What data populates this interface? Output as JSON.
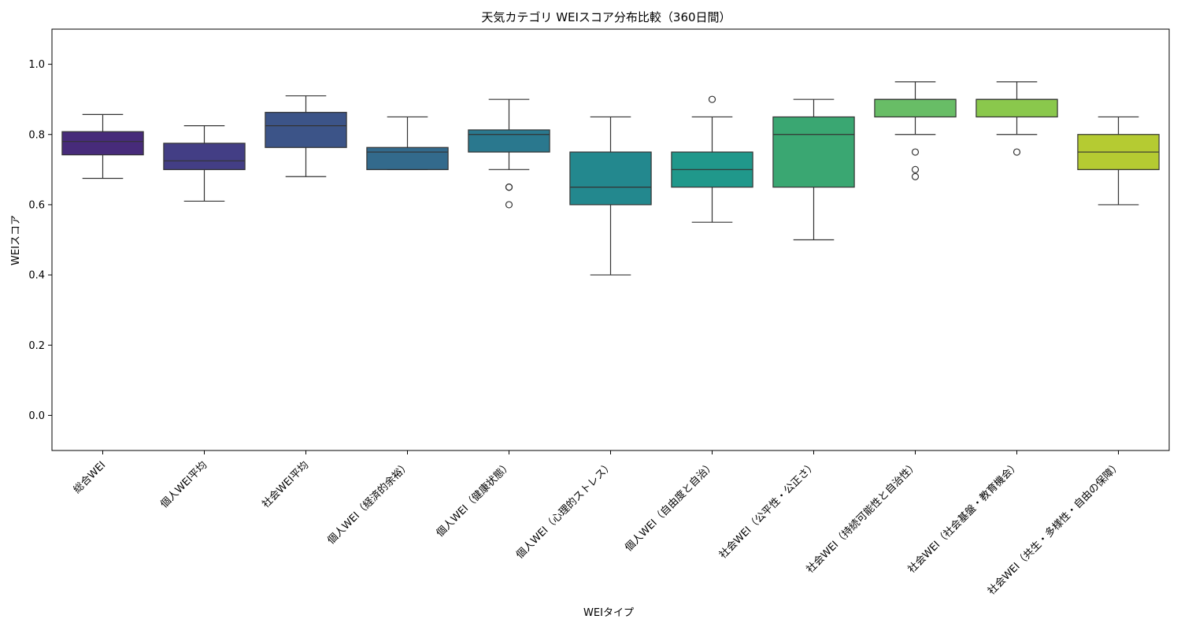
{
  "chart_data": {
    "type": "box",
    "title": "天気カテゴリ WEIスコア分布比較（360日間）",
    "xlabel": "WEIタイプ",
    "ylabel": "WEIスコア",
    "ylim": [
      -0.1,
      1.1
    ],
    "yticks": [
      "0.0",
      "0.2",
      "0.4",
      "0.6",
      "0.8",
      "1.0"
    ],
    "grid": false,
    "categories": [
      "総合WEI",
      "個人WEI平均",
      "社会WEI平均",
      "個人WEI（経済的余裕）",
      "個人WEI（健康状態）",
      "個人WEI（心理的ストレス）",
      "個人WEI（自由度と自治）",
      "社会WEI（公平性・公正さ）",
      "社会WEI（持続可能性と自治性）",
      "社会WEI（社会基盤・教育機会）",
      "社会WEI（共生・多様性・自由の保障）"
    ],
    "boxes": [
      {
        "whisker_low": 0.675,
        "q1": 0.742,
        "median": 0.78,
        "q3": 0.808,
        "whisker_high": 0.857,
        "outliers": [],
        "color": "#472b7a"
      },
      {
        "whisker_low": 0.61,
        "q1": 0.7,
        "median": 0.725,
        "q3": 0.775,
        "whisker_high": 0.825,
        "outliers": [],
        "color": "#433e85"
      },
      {
        "whisker_low": 0.68,
        "q1": 0.763,
        "median": 0.825,
        "q3": 0.863,
        "whisker_high": 0.91,
        "outliers": [],
        "color": "#3c5488"
      },
      {
        "whisker_low": 0.7,
        "q1": 0.7,
        "median": 0.75,
        "q3": 0.763,
        "whisker_high": 0.85,
        "outliers": [],
        "color": "#336a8c"
      },
      {
        "whisker_low": 0.7,
        "q1": 0.75,
        "median": 0.8,
        "q3": 0.813,
        "whisker_high": 0.9,
        "outliers": [
          0.65,
          0.65,
          0.6
        ],
        "color": "#2a788e"
      },
      {
        "whisker_low": 0.4,
        "q1": 0.6,
        "median": 0.65,
        "q3": 0.75,
        "whisker_high": 0.85,
        "outliers": [],
        "color": "#23888e"
      },
      {
        "whisker_low": 0.55,
        "q1": 0.65,
        "median": 0.7,
        "q3": 0.75,
        "whisker_high": 0.85,
        "outliers": [
          0.9
        ],
        "color": "#20988b"
      },
      {
        "whisker_low": 0.5,
        "q1": 0.65,
        "median": 0.8,
        "q3": 0.85,
        "whisker_high": 0.9,
        "outliers": [],
        "color": "#3aa772"
      },
      {
        "whisker_low": 0.8,
        "q1": 0.85,
        "median": 0.9,
        "q3": 0.9,
        "whisker_high": 0.95,
        "outliers": [
          0.75,
          0.7,
          0.68
        ],
        "color": "#68bd66"
      },
      {
        "whisker_low": 0.8,
        "q1": 0.85,
        "median": 0.9,
        "q3": 0.9,
        "whisker_high": 0.95,
        "outliers": [
          0.75
        ],
        "color": "#8ac84c"
      },
      {
        "whisker_low": 0.6,
        "q1": 0.7,
        "median": 0.75,
        "q3": 0.8,
        "whisker_high": 0.85,
        "outliers": [],
        "color": "#b5cb32"
      }
    ]
  }
}
